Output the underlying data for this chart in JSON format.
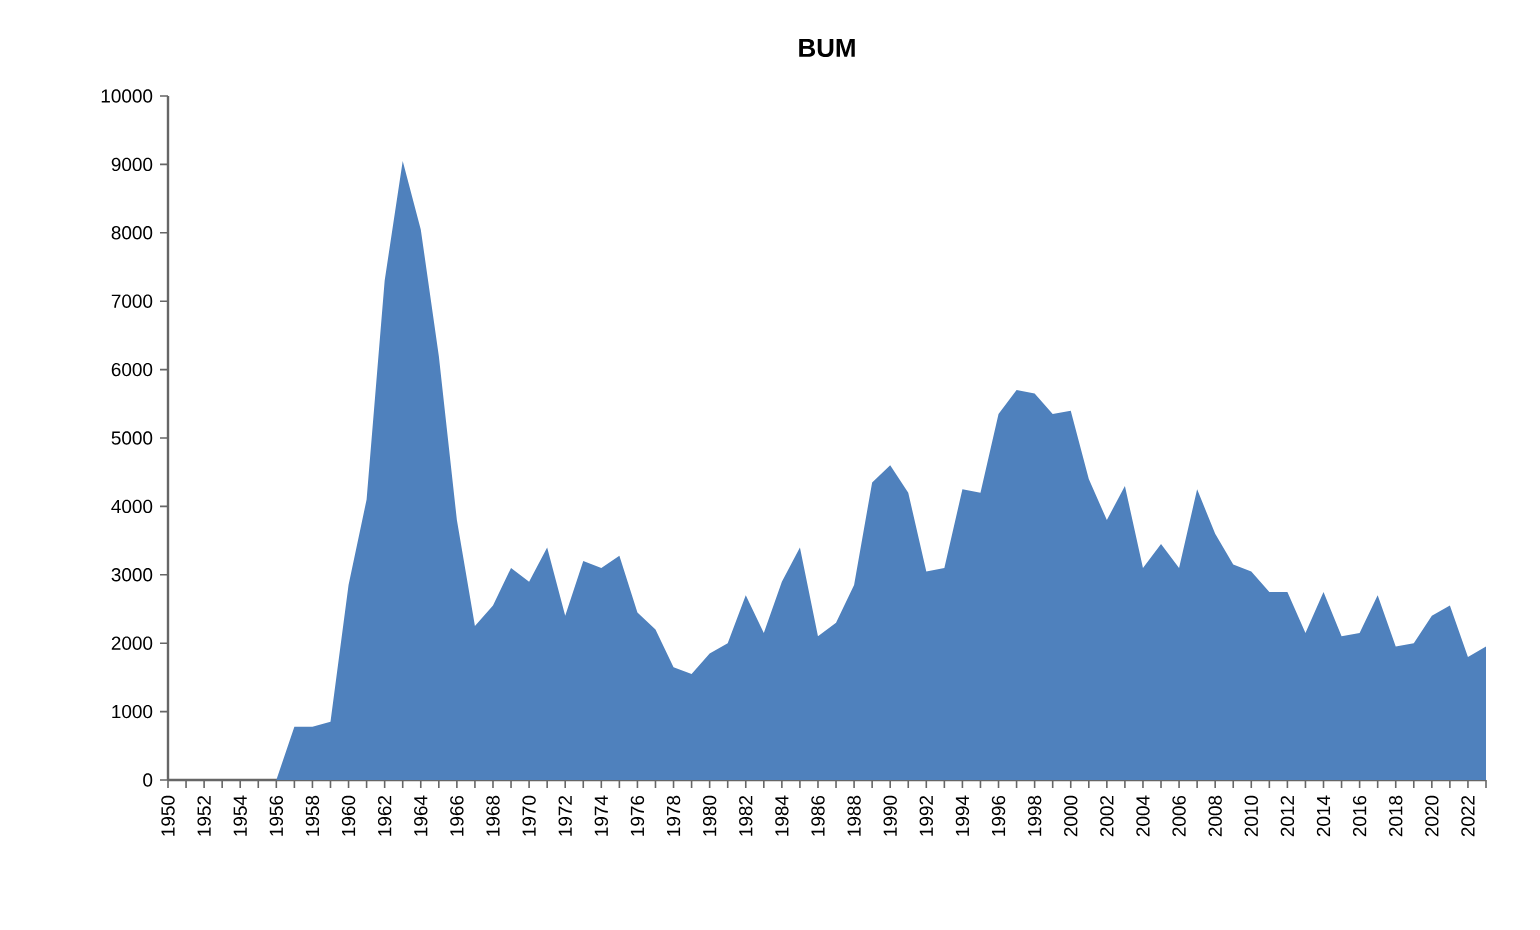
{
  "chart_data": {
    "type": "area",
    "title": "BUM",
    "categories": [
      "1950",
      null,
      "1952",
      null,
      "1954",
      null,
      "1956",
      null,
      "1958",
      null,
      "1960",
      null,
      "1962",
      null,
      "1964",
      null,
      "1966",
      null,
      "1968",
      null,
      "1970",
      null,
      "1972",
      null,
      "1974",
      null,
      "1976",
      null,
      "1978",
      null,
      "1980",
      null,
      "1982",
      null,
      "1984",
      null,
      "1986",
      null,
      "1988",
      null,
      "1990",
      null,
      "1992",
      null,
      "1994",
      null,
      "1996",
      null,
      "1998",
      null,
      "2000",
      null,
      "2002",
      null,
      "2004",
      null,
      "2006",
      null,
      "2008",
      null,
      "2010",
      null,
      "2012",
      null,
      "2014",
      null,
      "2016",
      null,
      "2018",
      null,
      "2020",
      null,
      "2022",
      null
    ],
    "values": [
      0,
      0,
      0,
      0,
      0,
      0,
      0,
      780,
      780,
      850,
      2850,
      4100,
      7300,
      9050,
      8050,
      6200,
      3800,
      2250,
      2550,
      3100,
      2900,
      3400,
      2400,
      3200,
      3100,
      3280,
      2450,
      2200,
      1650,
      1550,
      1850,
      2000,
      2700,
      2150,
      2900,
      3400,
      2100,
      2300,
      2850,
      4350,
      4600,
      4200,
      3050,
      3100,
      4250,
      4200,
      5350,
      5700,
      5650,
      5350,
      5400,
      4400,
      3800,
      4300,
      3100,
      3450,
      3100,
      4250,
      3600,
      3150,
      3050,
      2750,
      2750,
      2150,
      2750,
      2100,
      2150,
      2700,
      1950,
      2000,
      2400,
      2550,
      1800,
      1950
    ],
    "color": "#4f81bd",
    "ylim": [
      0,
      10000
    ],
    "yticks": [
      0,
      1000,
      2000,
      3000,
      4000,
      5000,
      6000,
      7000,
      8000,
      9000,
      10000
    ],
    "grid": false
  }
}
